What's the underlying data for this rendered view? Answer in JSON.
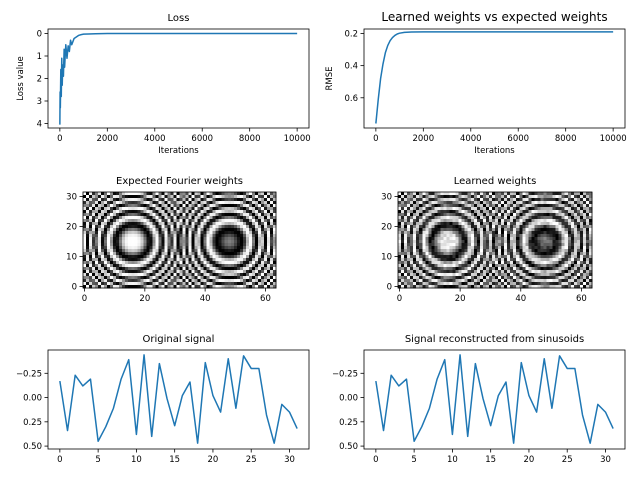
{
  "chart_data": [
    {
      "type": "line",
      "title": "Loss",
      "xlabel": "Iterations",
      "ylabel": "Loss value",
      "xlim": [
        -500,
        10500
      ],
      "ylim": [
        -0.2,
        4.2
      ],
      "xticks": [
        0,
        2000,
        4000,
        6000,
        8000,
        10000
      ],
      "xticklabels": [
        "0",
        "2000",
        "4000",
        "6000",
        "8000",
        "10000"
      ],
      "yticks": [
        0,
        1,
        2,
        3,
        4
      ],
      "yticklabels": [
        "0",
        "1",
        "2",
        "3",
        "4"
      ],
      "grid": false,
      "series": [
        {
          "color": "#1f77b4",
          "x": [
            0,
            10,
            20,
            40,
            60,
            80,
            100,
            120,
            150,
            180,
            200,
            250,
            300,
            350,
            400,
            450,
            500,
            600,
            700,
            800,
            900,
            1000,
            1200,
            1500,
            2000,
            3000,
            5000,
            7000,
            10000
          ],
          "y": [
            4.05,
            2.6,
            3.3,
            1.6,
            2.8,
            1.1,
            2.3,
            1.4,
            1.9,
            0.7,
            1.5,
            0.5,
            1.1,
            0.55,
            0.8,
            0.3,
            0.5,
            0.22,
            0.15,
            0.08,
            0.05,
            0.03,
            0.02,
            0.01,
            0.0,
            0.0,
            0.0,
            0.0,
            0.0
          ]
        }
      ]
    },
    {
      "type": "line",
      "title": "Learned weights vs expected weights",
      "xlabel": "Iterations",
      "ylabel": "RMSE",
      "xlim": [
        -500,
        10500
      ],
      "ylim": [
        0.172,
        0.788
      ],
      "xticks": [
        0,
        2000,
        4000,
        6000,
        8000,
        10000
      ],
      "xticklabels": [
        "0",
        "2000",
        "4000",
        "6000",
        "8000",
        "10000"
      ],
      "yticks": [
        0.2,
        0.4,
        0.6
      ],
      "yticklabels": [
        "0.2",
        "0.4",
        "0.6"
      ],
      "grid": false,
      "series": [
        {
          "color": "#1f77b4",
          "x": [
            0,
            100,
            200,
            300,
            400,
            500,
            600,
            700,
            800,
            900,
            1000,
            1200,
            1500,
            2000,
            3000,
            5000,
            7000,
            10000
          ],
          "y": [
            0.76,
            0.61,
            0.48,
            0.39,
            0.32,
            0.275,
            0.245,
            0.225,
            0.212,
            0.203,
            0.198,
            0.193,
            0.191,
            0.19,
            0.19,
            0.19,
            0.19,
            0.19
          ]
        }
      ]
    },
    {
      "type": "heatmap",
      "title": "Expected Fourier weights",
      "xlim": [
        -0.5,
        63.5
      ],
      "ylim": [
        31.5,
        -0.5
      ],
      "xticks": [
        0,
        20,
        40,
        60
      ],
      "xticklabels": [
        "0",
        "20",
        "40",
        "60"
      ],
      "yticks": [
        0,
        10,
        20,
        30
      ],
      "yticklabels": [
        "0",
        "10",
        "20",
        "30"
      ],
      "rows": 32,
      "cols": 64,
      "colormap": "gray"
    },
    {
      "type": "heatmap",
      "title": "Learned weights",
      "xlim": [
        -0.5,
        63.5
      ],
      "ylim": [
        31.5,
        -0.5
      ],
      "xticks": [
        0,
        20,
        40,
        60
      ],
      "xticklabels": [
        "0",
        "20",
        "40",
        "60"
      ],
      "yticks": [
        0,
        10,
        20,
        30
      ],
      "yticklabels": [
        "0",
        "10",
        "20",
        "30"
      ],
      "rows": 32,
      "cols": 64,
      "colormap": "gray"
    },
    {
      "type": "line",
      "title": "Original signal",
      "xlabel": "",
      "ylabel": "",
      "xlim": [
        -1.55,
        32.55
      ],
      "ylim": [
        -0.49,
        0.53
      ],
      "xticks": [
        0,
        5,
        10,
        15,
        20,
        25,
        30
      ],
      "xticklabels": [
        "0",
        "5",
        "10",
        "15",
        "20",
        "25",
        "30"
      ],
      "yticks": [
        -0.25,
        0.0,
        0.25,
        0.5
      ],
      "yticklabels": [
        "−0.25",
        "0.00",
        "0.25",
        "0.50"
      ],
      "grid": false,
      "series": [
        {
          "color": "#1f77b4",
          "x": [
            0,
            1,
            2,
            3,
            4,
            5,
            6,
            7,
            8,
            9,
            10,
            11,
            12,
            13,
            14,
            15,
            16,
            17,
            18,
            19,
            20,
            21,
            22,
            23,
            24,
            25,
            26,
            27,
            28,
            29,
            30,
            31
          ],
          "y": [
            -0.17,
            0.34,
            -0.23,
            -0.12,
            -0.19,
            0.45,
            0.3,
            0.11,
            -0.19,
            -0.39,
            0.38,
            -0.44,
            0.4,
            -0.35,
            0.01,
            0.29,
            -0.02,
            -0.16,
            0.47,
            -0.36,
            -0.02,
            0.15,
            -0.4,
            0.11,
            -0.43,
            -0.3,
            -0.3,
            0.18,
            0.47,
            0.07,
            0.15,
            0.32
          ]
        }
      ]
    },
    {
      "type": "line",
      "title": "Signal reconstructed from sinusoids",
      "xlabel": "",
      "ylabel": "",
      "xlim": [
        -1.55,
        32.55
      ],
      "ylim": [
        -0.49,
        0.53
      ],
      "xticks": [
        0,
        5,
        10,
        15,
        20,
        25,
        30
      ],
      "xticklabels": [
        "0",
        "5",
        "10",
        "15",
        "20",
        "25",
        "30"
      ],
      "yticks": [
        -0.25,
        0.0,
        0.25,
        0.5
      ],
      "yticklabels": [
        "−0.25",
        "0.00",
        "0.25",
        "0.50"
      ],
      "grid": false,
      "series": [
        {
          "color": "#1f77b4",
          "x": [
            0,
            1,
            2,
            3,
            4,
            5,
            6,
            7,
            8,
            9,
            10,
            11,
            12,
            13,
            14,
            15,
            16,
            17,
            18,
            19,
            20,
            21,
            22,
            23,
            24,
            25,
            26,
            27,
            28,
            29,
            30,
            31
          ],
          "y": [
            -0.17,
            0.34,
            -0.23,
            -0.12,
            -0.19,
            0.45,
            0.3,
            0.11,
            -0.19,
            -0.39,
            0.38,
            -0.44,
            0.4,
            -0.35,
            0.01,
            0.29,
            -0.02,
            -0.16,
            0.47,
            -0.36,
            -0.02,
            0.15,
            -0.4,
            0.11,
            -0.43,
            -0.3,
            -0.3,
            0.18,
            0.47,
            0.07,
            0.15,
            0.32
          ]
        }
      ]
    }
  ]
}
